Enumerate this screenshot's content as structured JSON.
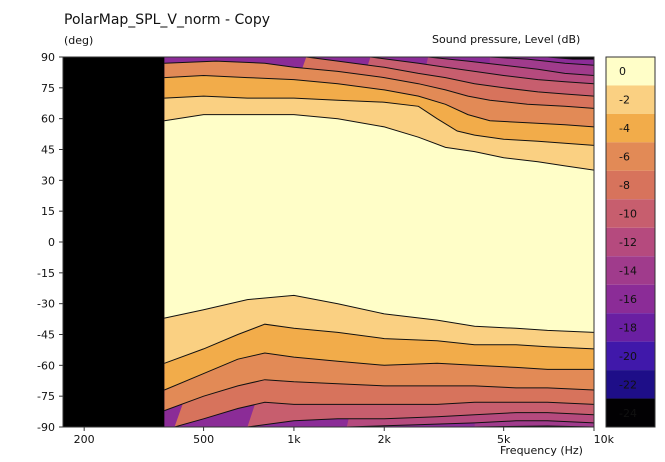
{
  "chart_data": {
    "type": "heatmap",
    "title": "PolarMap_SPL_V_norm - Copy",
    "ylabel": "(deg)",
    "xlabel": "Frequency  (Hz)",
    "colorbar_label": "Sound pressure, Level  (dB)",
    "x_scale": "log",
    "xlim": [
      170,
      10000
    ],
    "ylim": [
      -90,
      90
    ],
    "x_ticks": [
      {
        "value": 200,
        "label": "200"
      },
      {
        "value": 500,
        "label": "500"
      },
      {
        "value": 1000,
        "label": "1k"
      },
      {
        "value": 2000,
        "label": "2k"
      },
      {
        "value": 5000,
        "label": "5k"
      },
      {
        "value": 10000,
        "label": "10k"
      }
    ],
    "y_ticks": [
      90,
      75,
      60,
      45,
      30,
      15,
      0,
      -15,
      -30,
      -45,
      -60,
      -75,
      -90
    ],
    "no_data_below_hz": 370,
    "levels": [
      0,
      -2,
      -4,
      -6,
      -8,
      -10,
      -12,
      -14,
      -16,
      -18,
      -20,
      -22,
      -24
    ],
    "level_colors": [
      "#fffec8",
      "#fad082",
      "#f2ac4a",
      "#e28a56",
      "#d7735c",
      "#c75e6e",
      "#b54a7e",
      "#a03b8c",
      "#8b2c97",
      "#6a1fa2",
      "#4018aa",
      "#1e0e88",
      "#020103"
    ],
    "contours": [
      {
        "level": -2,
        "upper_angle_deg": [
          [
            370,
            59
          ],
          [
            500,
            62
          ],
          [
            700,
            62
          ],
          [
            1000,
            62
          ],
          [
            1400,
            60
          ],
          [
            2000,
            56
          ],
          [
            2600,
            51
          ],
          [
            3200,
            46
          ],
          [
            4000,
            44
          ],
          [
            5000,
            41
          ],
          [
            6500,
            39
          ],
          [
            8000,
            37
          ],
          [
            10000,
            35
          ]
        ],
        "lower_angle_deg": [
          [
            370,
            -37
          ],
          [
            500,
            -33
          ],
          [
            700,
            -28
          ],
          [
            1000,
            -26
          ],
          [
            1400,
            -30
          ],
          [
            2000,
            -35
          ],
          [
            3000,
            -38
          ],
          [
            4000,
            -41
          ],
          [
            5500,
            -42
          ],
          [
            7000,
            -43
          ],
          [
            10000,
            -44
          ]
        ]
      },
      {
        "level": -4,
        "upper_angle_deg": [
          [
            370,
            70
          ],
          [
            500,
            71
          ],
          [
            700,
            70
          ],
          [
            1000,
            70
          ],
          [
            1400,
            69
          ],
          [
            2000,
            68
          ],
          [
            2600,
            66
          ],
          [
            3000,
            60
          ],
          [
            3500,
            54
          ],
          [
            4000,
            52
          ],
          [
            5000,
            50
          ],
          [
            6500,
            49
          ],
          [
            8000,
            48
          ],
          [
            10000,
            47
          ]
        ],
        "lower_angle_deg": [
          [
            370,
            -59
          ],
          [
            500,
            -52
          ],
          [
            650,
            -45
          ],
          [
            800,
            -40
          ],
          [
            1000,
            -42
          ],
          [
            1400,
            -44
          ],
          [
            2000,
            -47
          ],
          [
            3000,
            -48
          ],
          [
            4000,
            -50
          ],
          [
            5500,
            -50
          ],
          [
            7000,
            -51
          ],
          [
            10000,
            -52
          ]
        ]
      },
      {
        "level": -6,
        "upper_angle_deg": [
          [
            370,
            80
          ],
          [
            500,
            81
          ],
          [
            700,
            80
          ],
          [
            1000,
            79
          ],
          [
            1400,
            77
          ],
          [
            2000,
            74
          ],
          [
            2600,
            71
          ],
          [
            3200,
            67
          ],
          [
            3800,
            62
          ],
          [
            4500,
            59
          ],
          [
            6000,
            58
          ],
          [
            8000,
            57
          ],
          [
            10000,
            56
          ]
        ],
        "lower_angle_deg": [
          [
            370,
            -72
          ],
          [
            500,
            -64
          ],
          [
            650,
            -57
          ],
          [
            800,
            -54
          ],
          [
            1000,
            -56
          ],
          [
            1400,
            -58
          ],
          [
            2000,
            -60
          ],
          [
            3000,
            -59
          ],
          [
            4000,
            -60
          ],
          [
            5500,
            -61
          ],
          [
            7000,
            -62
          ],
          [
            10000,
            -62
          ]
        ]
      },
      {
        "level": -8,
        "upper_angle_deg": [
          [
            370,
            87
          ],
          [
            550,
            88
          ],
          [
            800,
            87
          ],
          [
            1000,
            85
          ],
          [
            1400,
            83
          ],
          [
            2000,
            80
          ],
          [
            2600,
            77
          ],
          [
            3200,
            74
          ],
          [
            3800,
            71
          ],
          [
            4500,
            69
          ],
          [
            6000,
            67
          ],
          [
            8000,
            66
          ],
          [
            10000,
            65
          ]
        ],
        "lower_angle_deg": [
          [
            370,
            -82
          ],
          [
            500,
            -75
          ],
          [
            650,
            -70
          ],
          [
            800,
            -67
          ],
          [
            1000,
            -68
          ],
          [
            1400,
            -69
          ],
          [
            2000,
            -70
          ],
          [
            3000,
            -70
          ],
          [
            4000,
            -70
          ],
          [
            5500,
            -71
          ],
          [
            7000,
            -71
          ],
          [
            10000,
            -72
          ]
        ]
      },
      {
        "level": -10,
        "upper_angle_deg": [
          [
            1100,
            90
          ],
          [
            1400,
            88
          ],
          [
            2000,
            85
          ],
          [
            2600,
            82
          ],
          [
            3200,
            80
          ],
          [
            4000,
            77
          ],
          [
            5000,
            75
          ],
          [
            6500,
            73
          ],
          [
            8000,
            72
          ],
          [
            10000,
            71
          ]
        ],
        "lower_angle_deg": [
          [
            400,
            -90
          ],
          [
            500,
            -86
          ],
          [
            650,
            -81
          ],
          [
            800,
            -78
          ],
          [
            1000,
            -79
          ],
          [
            1400,
            -79
          ],
          [
            2000,
            -79
          ],
          [
            3000,
            -79
          ],
          [
            4000,
            -78
          ],
          [
            5500,
            -78
          ],
          [
            7000,
            -78
          ],
          [
            10000,
            -79
          ]
        ]
      },
      {
        "level": -12,
        "upper_angle_deg": [
          [
            1800,
            90
          ],
          [
            2600,
            87
          ],
          [
            3200,
            85
          ],
          [
            4000,
            83
          ],
          [
            5000,
            81
          ],
          [
            6500,
            79
          ],
          [
            8000,
            78
          ],
          [
            10000,
            77
          ]
        ],
        "lower_angle_deg": [
          [
            700,
            -90
          ],
          [
            1000,
            -87
          ],
          [
            1400,
            -86
          ],
          [
            2000,
            -86
          ],
          [
            3000,
            -85
          ],
          [
            4000,
            -84
          ],
          [
            5500,
            -83
          ],
          [
            7000,
            -83
          ],
          [
            10000,
            -84
          ]
        ]
      },
      {
        "level": -14,
        "upper_angle_deg": [
          [
            2800,
            90
          ],
          [
            3800,
            88
          ],
          [
            5000,
            86
          ],
          [
            6500,
            84
          ],
          [
            8000,
            82
          ],
          [
            10000,
            81
          ]
        ],
        "lower_angle_deg": [
          [
            1500,
            -90
          ],
          [
            2500,
            -89
          ],
          [
            4000,
            -88
          ],
          [
            5500,
            -87
          ],
          [
            7000,
            -87
          ],
          [
            10000,
            -88
          ]
        ]
      },
      {
        "level": -16,
        "upper_angle_deg": [
          [
            4500,
            90
          ],
          [
            6000,
            89
          ],
          [
            8000,
            87
          ],
          [
            10000,
            86
          ]
        ],
        "lower_angle_deg": [
          [
            4000,
            -90
          ],
          [
            7000,
            -89.5
          ],
          [
            10000,
            -90
          ]
        ]
      },
      {
        "level": -18,
        "upper_angle_deg": [
          [
            7000,
            90
          ],
          [
            8500,
            89
          ],
          [
            10000,
            89
          ]
        ]
      }
    ]
  }
}
